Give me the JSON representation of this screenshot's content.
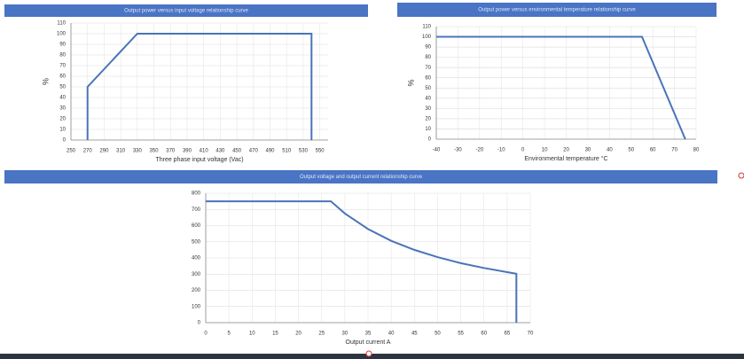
{
  "chart_data": [
    {
      "type": "line",
      "title": "Output power versus input voltage relationship curve",
      "x_label": "Three phase input voltage (Vac)",
      "y_label": "%",
      "x": [
        270,
        270,
        330,
        540,
        540
      ],
      "series": [
        {
          "color": "#4a74b8",
          "values": [
            0,
            50,
            100,
            100,
            0
          ]
        }
      ],
      "xlim": [
        250,
        560
      ],
      "xticks": [
        250,
        270,
        290,
        310,
        330,
        350,
        370,
        390,
        410,
        430,
        450,
        470,
        490,
        510,
        530,
        550
      ],
      "ylim": [
        0,
        110
      ],
      "yticks": [
        0,
        10,
        20,
        30,
        40,
        50,
        60,
        70,
        80,
        90,
        100,
        110
      ],
      "grid": true
    },
    {
      "type": "line",
      "title": "Output power versus environmental temperature relationship curve",
      "x_label": "Environmental temperature °C",
      "y_label": "%",
      "x": [
        -40,
        55,
        75
      ],
      "series": [
        {
          "color": "#4a74b8",
          "values": [
            100,
            100,
            0
          ]
        }
      ],
      "xlim": [
        -40,
        80
      ],
      "xticks": [
        -40,
        -30,
        -20,
        -10,
        0,
        10,
        20,
        30,
        40,
        50,
        60,
        70,
        80
      ],
      "ylim": [
        0,
        110
      ],
      "yticks": [
        0,
        10,
        20,
        30,
        40,
        50,
        60,
        70,
        80,
        90,
        100,
        110
      ],
      "grid": true
    },
    {
      "type": "line",
      "title": "Output voltage and output current relationship curve",
      "x_label": "Output current A",
      "x": [
        0,
        27,
        30,
        35,
        40,
        45,
        50,
        55,
        60,
        67,
        67
      ],
      "series": [
        {
          "color": "#4a74b8",
          "values": [
            750,
            750,
            675,
            579,
            506,
            450,
            405,
            368,
            338,
            302,
            0
          ]
        }
      ],
      "xlim": [
        0,
        70
      ],
      "xticks": [
        0,
        5,
        10,
        15,
        20,
        25,
        30,
        35,
        40,
        45,
        50,
        55,
        60,
        65,
        70
      ],
      "ylim": [
        0,
        800
      ],
      "yticks": [
        0,
        100,
        200,
        300,
        400,
        500,
        600,
        700,
        800
      ],
      "grid": true
    }
  ]
}
